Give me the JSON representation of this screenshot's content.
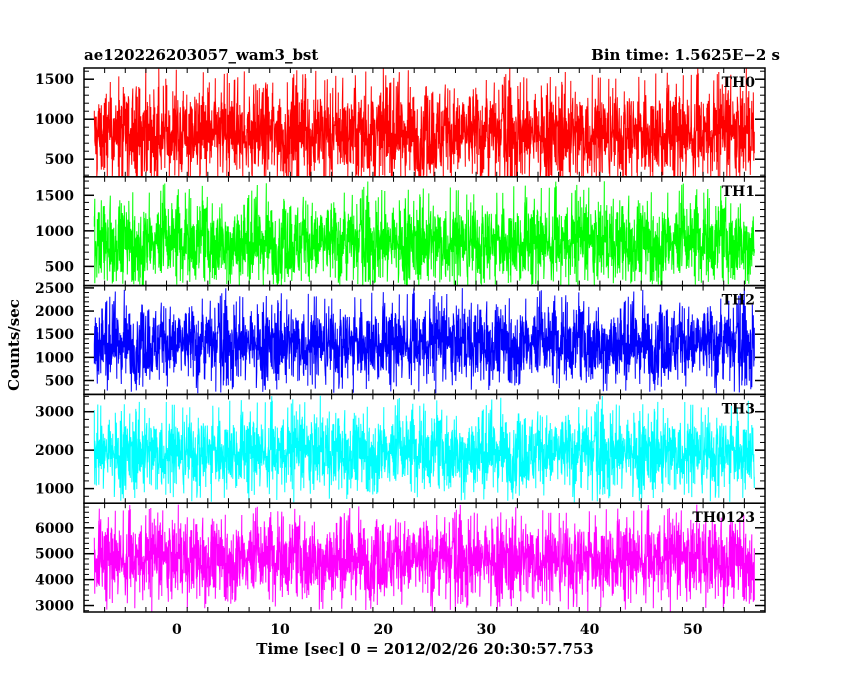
{
  "header": {
    "title": "ae120226203057_wam3_bst",
    "bin_time": "Bin time: 1.5625E−2 s"
  },
  "chart_data": {
    "type": "line",
    "title": "ae120226203057_wam3_bst",
    "subtitle": "Bin time: 1.5625E−2 s",
    "xlabel": "Time [sec] 0 = 2012/02/26 20:30:57.753",
    "ylabel": "Counts/sec",
    "xlim": [
      -9,
      57
    ],
    "x_data_range": [
      -8,
      56
    ],
    "x_ticks": [
      0,
      10,
      20,
      30,
      40,
      50
    ],
    "x_tick_labels": [
      "0",
      "10",
      "20",
      "30",
      "40",
      "50"
    ],
    "grid": false,
    "panels": [
      {
        "name": "TH0",
        "color": "#ff0000",
        "ylim": [
          280,
          1640
        ],
        "y_ticks": [
          500,
          1000,
          1500
        ],
        "y_tick_labels": [
          "500",
          "1000",
          "1500"
        ],
        "baseline": 820,
        "typical_low": 260,
        "typical_high": 1380,
        "max": 1640,
        "min": 270
      },
      {
        "name": "TH1",
        "color": "#00ff00",
        "ylim": [
          230,
          1760
        ],
        "y_ticks": [
          500,
          1000,
          1500
        ],
        "y_tick_labels": [
          "500",
          "1000",
          "1500"
        ],
        "baseline": 840,
        "typical_low": 320,
        "typical_high": 1420,
        "max": 1700,
        "min": 240
      },
      {
        "name": "TH2",
        "color": "#0000ff",
        "ylim": [
          200,
          2550
        ],
        "y_ticks": [
          500,
          1000,
          1500,
          2000,
          2500
        ],
        "y_tick_labels": [
          "500",
          "1000",
          "1500",
          "2000",
          "2500"
        ],
        "baseline": 1300,
        "typical_low": 520,
        "typical_high": 2100,
        "max": 2500,
        "min": 220
      },
      {
        "name": "TH3",
        "color": "#00ffff",
        "ylim": [
          620,
          3450
        ],
        "y_ticks": [
          1000,
          2000,
          3000
        ],
        "y_tick_labels": [
          "1000",
          "2000",
          "3000"
        ],
        "baseline": 1950,
        "typical_low": 1000,
        "typical_high": 2900,
        "max": 3420,
        "min": 640
      },
      {
        "name": "TH0123",
        "color": "#ff00ff",
        "ylim": [
          2750,
          6950
        ],
        "y_ticks": [
          3000,
          4000,
          5000,
          6000
        ],
        "y_tick_labels": [
          "3000",
          "4000",
          "5000",
          "6000"
        ],
        "baseline": 4800,
        "typical_low": 3300,
        "typical_high": 6200,
        "max": 6900,
        "min": 2760
      }
    ]
  }
}
